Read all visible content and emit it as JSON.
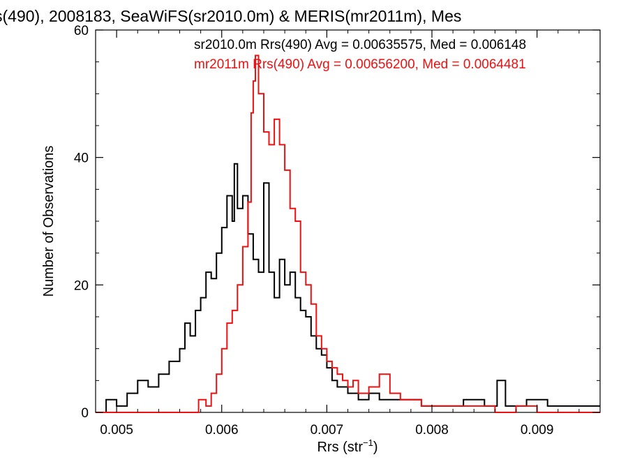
{
  "chart_data": {
    "type": "histogram",
    "title": "s(490), 2008183, SeaWiFS(sr2010.0m) & MERIS(mr2011m), Mes",
    "xlabel": "Rrs (str",
    "xlabel_sup": "−1",
    "xlabel_close": ")",
    "ylabel": "Number of Observations",
    "xlim": [
      0.0048,
      0.0096
    ],
    "ylim": [
      0,
      60
    ],
    "x_ticks": [
      0.005,
      0.006,
      0.007,
      0.008,
      0.009
    ],
    "x_tick_labels": [
      "0.005",
      "0.006",
      "0.007",
      "0.008",
      "0.009"
    ],
    "y_ticks": [
      0,
      20,
      40,
      60
    ],
    "y_tick_labels": [
      "0",
      "20",
      "40",
      "60"
    ],
    "grid": false,
    "legend_position": "top-right",
    "colors": {
      "sr2010": "#000000",
      "mr2011": "#ee1111"
    },
    "series": [
      {
        "name": "sr2010.0m",
        "legend": "sr2010.0m Rrs(490) Avg = 0.00635575, Med = 0.006148",
        "color": "#000000",
        "points": [
          [
            0.0048,
            0
          ],
          [
            0.0049,
            2
          ],
          [
            0.005,
            1
          ],
          [
            0.0051,
            3
          ],
          [
            0.0052,
            5
          ],
          [
            0.0053,
            4
          ],
          [
            0.0054,
            6
          ],
          [
            0.0055,
            8
          ],
          [
            0.0056,
            10
          ],
          [
            0.00565,
            14
          ],
          [
            0.0057,
            12
          ],
          [
            0.00575,
            16
          ],
          [
            0.0058,
            18
          ],
          [
            0.00585,
            22
          ],
          [
            0.0059,
            21
          ],
          [
            0.00595,
            25
          ],
          [
            0.006,
            29
          ],
          [
            0.00605,
            34
          ],
          [
            0.0061,
            30
          ],
          [
            0.00612,
            39
          ],
          [
            0.00615,
            32
          ],
          [
            0.0062,
            34
          ],
          [
            0.00625,
            28
          ],
          [
            0.0063,
            24
          ],
          [
            0.00635,
            22
          ],
          [
            0.0064,
            36
          ],
          [
            0.00645,
            22
          ],
          [
            0.0065,
            18
          ],
          [
            0.00655,
            24
          ],
          [
            0.0066,
            20
          ],
          [
            0.00665,
            22
          ],
          [
            0.0067,
            18
          ],
          [
            0.00675,
            16
          ],
          [
            0.0068,
            15
          ],
          [
            0.00685,
            12
          ],
          [
            0.0069,
            10
          ],
          [
            0.00695,
            9
          ],
          [
            0.007,
            7
          ],
          [
            0.00705,
            5
          ],
          [
            0.0071,
            4
          ],
          [
            0.0072,
            3
          ],
          [
            0.0073,
            2
          ],
          [
            0.0074,
            3
          ],
          [
            0.0075,
            2
          ],
          [
            0.0077,
            2
          ],
          [
            0.0079,
            1
          ],
          [
            0.0081,
            1
          ],
          [
            0.0083,
            2
          ],
          [
            0.0085,
            1
          ],
          [
            0.00862,
            5
          ],
          [
            0.0087,
            1
          ],
          [
            0.0089,
            2
          ],
          [
            0.0091,
            1
          ],
          [
            0.0093,
            1
          ],
          [
            0.0095,
            1
          ]
        ]
      },
      {
        "name": "mr2011m",
        "legend": "mr2011m Rrs(490) Avg = 0.00656200, Med = 0.0064481",
        "color": "#ee1111",
        "points": [
          [
            0.0048,
            0
          ],
          [
            0.0057,
            0
          ],
          [
            0.00578,
            2
          ],
          [
            0.00585,
            1
          ],
          [
            0.0059,
            3
          ],
          [
            0.00595,
            6
          ],
          [
            0.006,
            10
          ],
          [
            0.00605,
            14
          ],
          [
            0.0061,
            16
          ],
          [
            0.00615,
            20
          ],
          [
            0.0062,
            26
          ],
          [
            0.00625,
            33
          ],
          [
            0.00628,
            47
          ],
          [
            0.0063,
            52
          ],
          [
            0.00632,
            56
          ],
          [
            0.00635,
            50
          ],
          [
            0.0064,
            44
          ],
          [
            0.00645,
            42
          ],
          [
            0.0065,
            46
          ],
          [
            0.00655,
            42
          ],
          [
            0.0066,
            38
          ],
          [
            0.00665,
            32
          ],
          [
            0.0067,
            30
          ],
          [
            0.00675,
            22
          ],
          [
            0.0068,
            20
          ],
          [
            0.00685,
            17
          ],
          [
            0.0069,
            12
          ],
          [
            0.00695,
            10
          ],
          [
            0.007,
            8
          ],
          [
            0.00705,
            7
          ],
          [
            0.0071,
            6
          ],
          [
            0.00715,
            5
          ],
          [
            0.0072,
            4
          ],
          [
            0.00725,
            5
          ],
          [
            0.0073,
            3
          ],
          [
            0.0074,
            4
          ],
          [
            0.0075,
            6
          ],
          [
            0.0076,
            3
          ],
          [
            0.0077,
            2
          ],
          [
            0.0078,
            2
          ],
          [
            0.0079,
            1
          ],
          [
            0.008,
            1
          ],
          [
            0.0082,
            1
          ],
          [
            0.0084,
            1
          ],
          [
            0.0086,
            0
          ],
          [
            0.0088,
            1
          ],
          [
            0.009,
            0
          ],
          [
            0.0096,
            0
          ]
        ]
      }
    ]
  }
}
